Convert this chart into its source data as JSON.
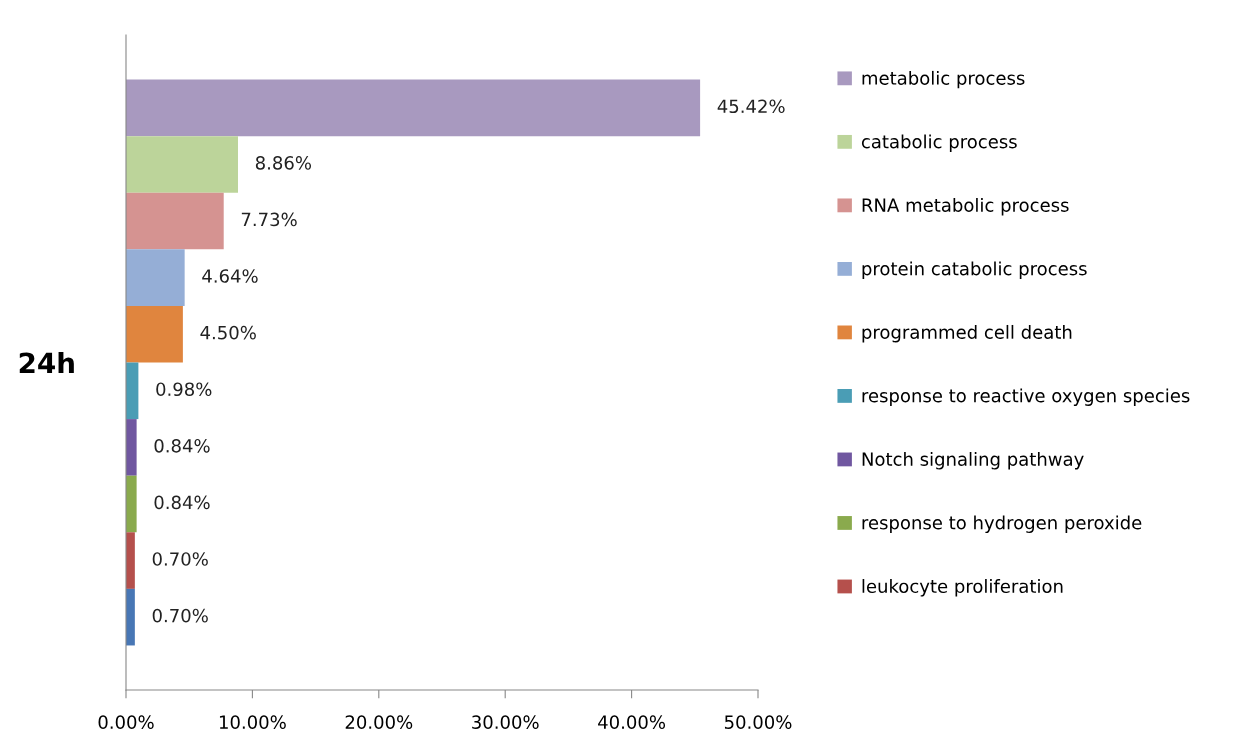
{
  "chart_data": {
    "type": "bar",
    "orientation": "horizontal",
    "categories": [
      "24h"
    ],
    "xlim": [
      0,
      50
    ],
    "xticks": [
      {
        "value": 0,
        "label": "0.00%"
      },
      {
        "value": 10,
        "label": "10.00%"
      },
      {
        "value": 20,
        "label": "20.00%"
      },
      {
        "value": 30,
        "label": "30.00%"
      },
      {
        "value": 40,
        "label": "40.00%"
      },
      {
        "value": 50,
        "label": "50.00%"
      }
    ],
    "grid": false,
    "legend": "right",
    "series": [
      {
        "name": "metabolic process",
        "color": "#a899bf",
        "values": [
          45.42
        ],
        "value_labels": [
          "45.42%"
        ]
      },
      {
        "name": "catabolic process",
        "color": "#bcd49a",
        "values": [
          8.86
        ],
        "value_labels": [
          "8.86%"
        ]
      },
      {
        "name": "RNA metabolic process",
        "color": "#d59391",
        "values": [
          7.73
        ],
        "value_labels": [
          "7.73%"
        ]
      },
      {
        "name": "protein catabolic process",
        "color": "#95aed6",
        "values": [
          4.64
        ],
        "value_labels": [
          "4.64%"
        ]
      },
      {
        "name": "programmed cell death",
        "color": "#e0853e",
        "values": [
          4.5
        ],
        "value_labels": [
          "4.50%"
        ]
      },
      {
        "name": "response to reactive oxygen species",
        "color": "#4a9db5",
        "values": [
          0.98
        ],
        "value_labels": [
          "0.98%"
        ]
      },
      {
        "name": "Notch signaling pathway",
        "color": "#7057a0",
        "values": [
          0.84
        ],
        "value_labels": [
          "0.84%"
        ]
      },
      {
        "name": "response to hydrogen peroxide",
        "color": "#8aaa4d",
        "values": [
          0.84
        ],
        "value_labels": [
          "0.84%"
        ]
      },
      {
        "name": "leukocyte proliferation",
        "color": "#b5504c",
        "values": [
          0.7
        ],
        "value_labels": [
          "0.70%"
        ]
      },
      {
        "color": "#4877b5",
        "values": [
          0.7
        ],
        "value_labels": [
          "0.70%"
        ]
      }
    ]
  }
}
